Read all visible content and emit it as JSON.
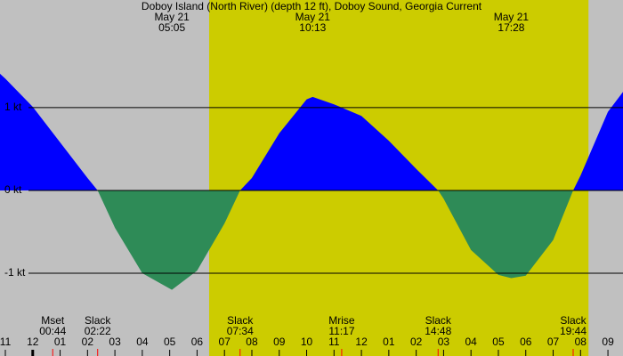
{
  "chart_data": {
    "type": "area",
    "title": "Doboy Island (North River) (depth 12 ft), Doboy Sound, Georgia Current",
    "x": [
      -1.2,
      -1,
      0,
      1,
      2,
      2.37,
      3,
      4,
      5.08,
      6,
      7,
      7.57,
      8,
      9,
      10,
      10.22,
      11,
      12,
      13,
      14,
      14.8,
      15,
      16,
      17,
      17.47,
      18,
      19,
      19.73,
      20,
      21,
      21.55
    ],
    "values": [
      1.41,
      1.35,
      1.01,
      0.58,
      0.15,
      0,
      -0.45,
      -1.0,
      -1.2,
      -0.97,
      -0.4,
      0,
      0.15,
      0.69,
      1.1,
      1.13,
      1.04,
      0.9,
      0.6,
      0.26,
      0,
      -0.1,
      -0.72,
      -1.02,
      -1.06,
      -1.03,
      -0.6,
      0,
      0.18,
      0.95,
      1.19
    ],
    "flood_color": "#0000ff",
    "ebb_color": "#2e8b57",
    "night_color": "#c0c0c0",
    "day_color": "#cccc00",
    "daylight": [
      6.44,
      20.29
    ],
    "xlim": [
      -1.195,
      21.55
    ],
    "ylim": [
      -2.0,
      2.3
    ],
    "yticks": [
      {
        "value": 1,
        "label": "1 kt"
      },
      {
        "value": 0,
        "label": "0 kt"
      },
      {
        "value": -1,
        "label": "-1 kt"
      }
    ],
    "xticks": [
      {
        "value": -1,
        "label": "11"
      },
      {
        "value": 0,
        "label": "12"
      },
      {
        "value": 1,
        "label": "01"
      },
      {
        "value": 2,
        "label": "02"
      },
      {
        "value": 3,
        "label": "03"
      },
      {
        "value": 4,
        "label": "04"
      },
      {
        "value": 5,
        "label": "05"
      },
      {
        "value": 6,
        "label": "06"
      },
      {
        "value": 7,
        "label": "07"
      },
      {
        "value": 8,
        "label": "08"
      },
      {
        "value": 9,
        "label": "09"
      },
      {
        "value": 10,
        "label": "10"
      },
      {
        "value": 11,
        "label": "11"
      },
      {
        "value": 12,
        "label": "12"
      },
      {
        "value": 13,
        "label": "01"
      },
      {
        "value": 14,
        "label": "02"
      },
      {
        "value": 15,
        "label": "03"
      },
      {
        "value": 16,
        "label": "04"
      },
      {
        "value": 17,
        "label": "05"
      },
      {
        "value": 18,
        "label": "06"
      },
      {
        "value": 19,
        "label": "07"
      },
      {
        "value": 20,
        "label": "08"
      },
      {
        "value": 21,
        "label": "09"
      }
    ],
    "top_labels": [
      {
        "x": 5.08,
        "date": "May 21",
        "time": "05:05"
      },
      {
        "x": 10.22,
        "date": "May 21",
        "time": "10:13"
      },
      {
        "x": 17.47,
        "date": "May 21",
        "time": "17:28"
      }
    ],
    "events": [
      {
        "x": 0.73,
        "label": "Mset",
        "time": "00:44"
      },
      {
        "x": 2.37,
        "label": "Slack",
        "time": "02:22"
      },
      {
        "x": 7.57,
        "label": "Slack",
        "time": "07:34"
      },
      {
        "x": 11.28,
        "label": "Mrise",
        "time": "11:17"
      },
      {
        "x": 14.8,
        "label": "Slack",
        "time": "14:48"
      },
      {
        "x": 19.73,
        "label": "Slack",
        "time": "19:44"
      }
    ]
  }
}
